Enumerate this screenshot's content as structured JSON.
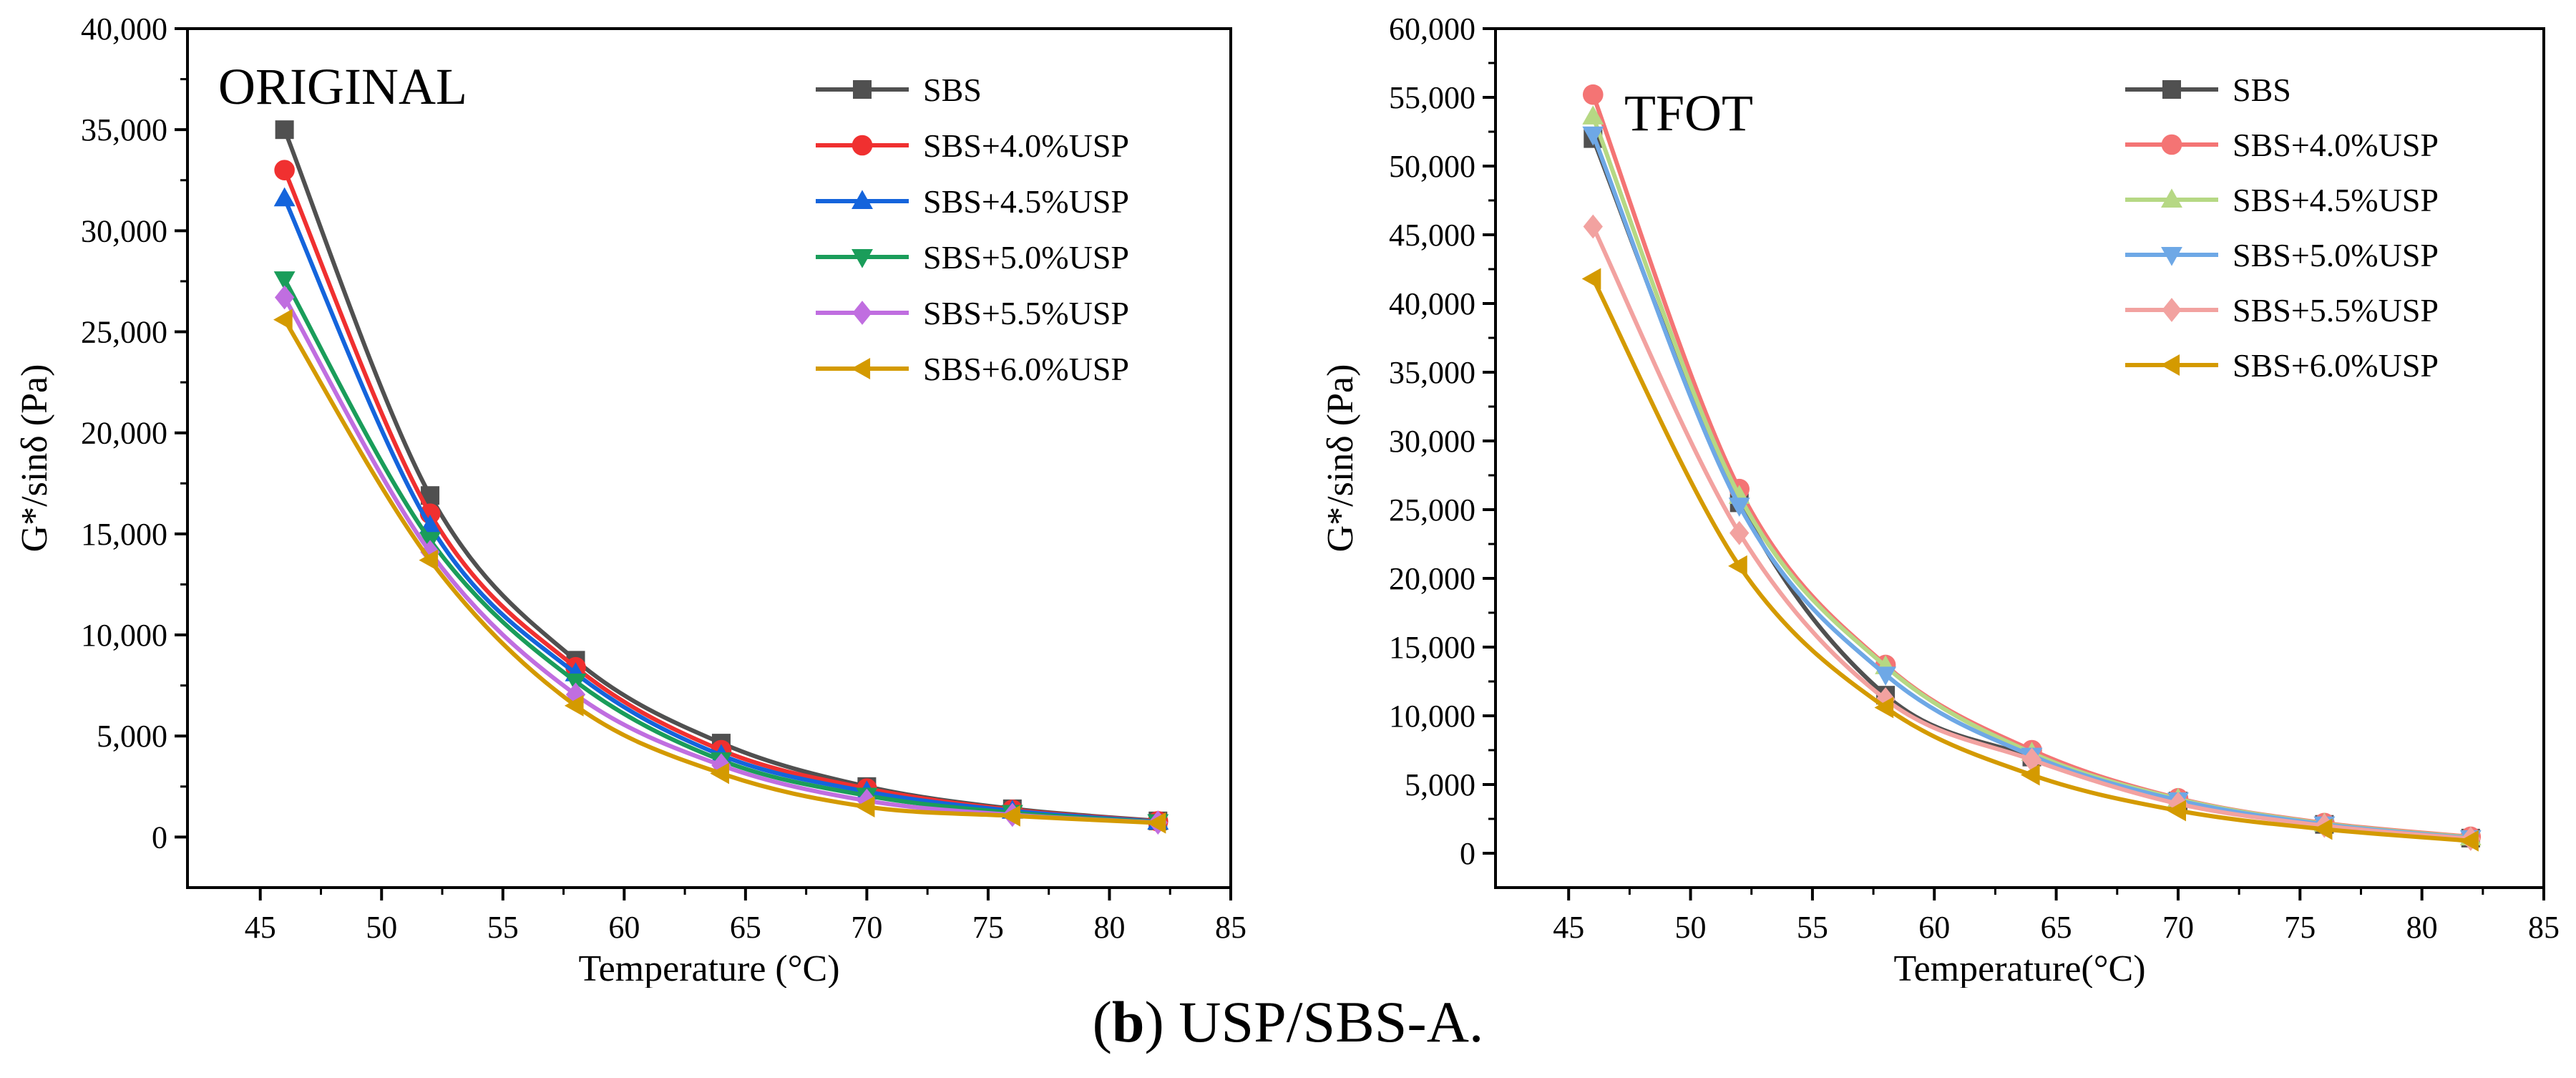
{
  "caption": {
    "bold": "b",
    "open": "(",
    "close": ")",
    "text": " USP/SBS-A."
  },
  "chart_data": [
    {
      "type": "line",
      "title": "ORIGINAL",
      "xlabel": "Temperature (°C)",
      "ylabel": "G*/sinδ (Pa)",
      "xlim": [
        42,
        85
      ],
      "ylim": [
        -2500,
        40000
      ],
      "xticks": [
        45,
        50,
        55,
        60,
        65,
        70,
        75,
        80,
        85
      ],
      "yticks": [
        0,
        5000,
        10000,
        15000,
        20000,
        25000,
        30000,
        35000,
        40000
      ],
      "ytick_labels": [
        "0",
        "5,000",
        "10,000",
        "15,000",
        "20,000",
        "25,000",
        "30,000",
        "35,000",
        "40,000"
      ],
      "legend_position": "top-right",
      "x": [
        46,
        52,
        58,
        64,
        70,
        76,
        82
      ],
      "series": [
        {
          "name": "SBS",
          "marker": "square",
          "color": "#505050",
          "values": [
            35000,
            16900,
            8750,
            4650,
            2500,
            1400,
            800
          ]
        },
        {
          "name": "SBS+4.0%USP",
          "marker": "circle",
          "color": "#f03030",
          "values": [
            33000,
            16000,
            8400,
            4300,
            2400,
            1350,
            780
          ]
        },
        {
          "name": "SBS+4.5%USP",
          "marker": "triangle-up",
          "color": "#1464dc",
          "values": [
            31600,
            15400,
            8100,
            4050,
            2250,
            1300,
            760
          ]
        },
        {
          "name": "SBS+5.0%USP",
          "marker": "triangle-down",
          "color": "#1a9d5a",
          "values": [
            27600,
            14700,
            7700,
            3800,
            2050,
            1200,
            740
          ]
        },
        {
          "name": "SBS+5.5%USP",
          "marker": "diamond",
          "color": "#c06ee0",
          "values": [
            26700,
            14100,
            7050,
            3550,
            1800,
            1100,
            720
          ]
        },
        {
          "name": "SBS+6.0%USP",
          "marker": "triangle-left",
          "color": "#d49a00",
          "values": [
            25600,
            13700,
            6500,
            3150,
            1500,
            1050,
            700
          ]
        }
      ]
    },
    {
      "type": "line",
      "title": "TFOT",
      "xlabel": "Temperature(°C)",
      "ylabel": "G*/sinδ (Pa)",
      "xlim": [
        42,
        85
      ],
      "ylim": [
        -2500,
        60000
      ],
      "xticks": [
        45,
        50,
        55,
        60,
        65,
        70,
        75,
        80,
        85
      ],
      "yticks": [
        0,
        5000,
        10000,
        15000,
        20000,
        25000,
        30000,
        35000,
        40000,
        45000,
        50000,
        55000,
        60000
      ],
      "ytick_labels": [
        "0",
        "5,000",
        "10,000",
        "15,000",
        "20,000",
        "25,000",
        "30,000",
        "35,000",
        "40,000",
        "45,000",
        "50,000",
        "55,000",
        "60,000"
      ],
      "legend_position": "top-right",
      "x": [
        46,
        52,
        58,
        64,
        70,
        76,
        82
      ],
      "series": [
        {
          "name": "SBS",
          "marker": "square",
          "color": "#505050",
          "values": [
            52000,
            25500,
            11500,
            7000,
            3800,
            2100,
            1100
          ]
        },
        {
          "name": "SBS+4.0%USP",
          "marker": "circle",
          "color": "#f47474",
          "values": [
            55200,
            26500,
            13700,
            7500,
            4000,
            2200,
            1200
          ]
        },
        {
          "name": "SBS+4.5%USP",
          "marker": "triangle-up",
          "color": "#b6d884",
          "values": [
            53600,
            26000,
            13600,
            7300,
            3950,
            2150,
            1150
          ]
        },
        {
          "name": "SBS+5.0%USP",
          "marker": "triangle-down",
          "color": "#6ea8e6",
          "values": [
            52300,
            25300,
            13000,
            7100,
            3850,
            2100,
            1100
          ]
        },
        {
          "name": "SBS+5.5%USP",
          "marker": "diamond",
          "color": "#f2a2a0",
          "values": [
            45600,
            23300,
            11200,
            6800,
            3600,
            2000,
            1050
          ]
        },
        {
          "name": "SBS+6.0%USP",
          "marker": "triangle-left",
          "color": "#d49a00",
          "values": [
            41800,
            20900,
            10600,
            5700,
            3100,
            1750,
            900
          ]
        }
      ]
    }
  ]
}
